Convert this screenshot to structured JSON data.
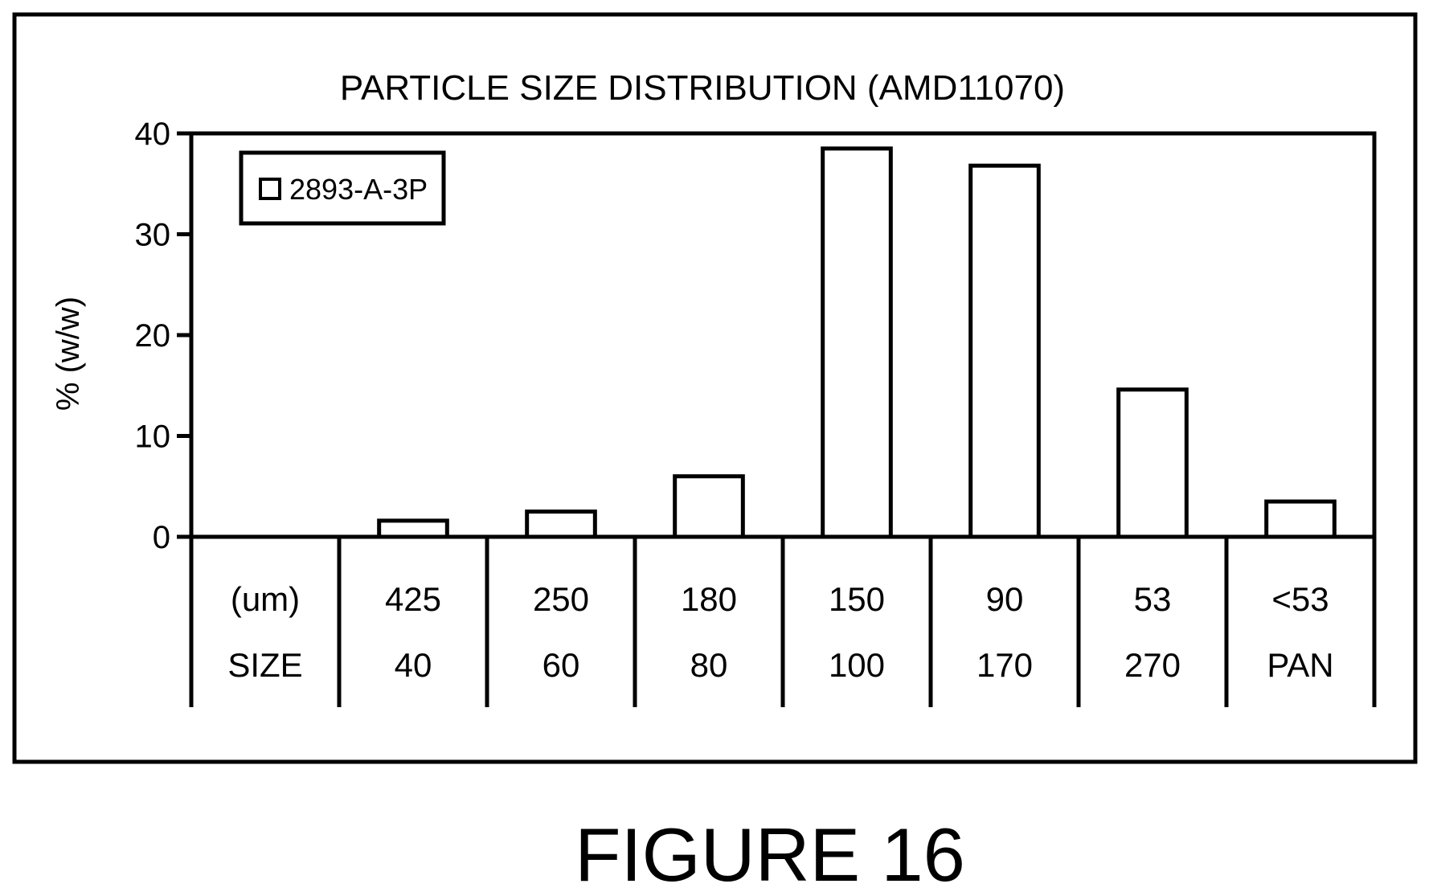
{
  "figure_label": "FIGURE 16",
  "chart_data": {
    "type": "bar",
    "title": "PARTICLE SIZE DISTRIBUTION (AMD11070)",
    "xlabel": "",
    "ylabel": "% (w/w)",
    "ylim": [
      0,
      40
    ],
    "yticks": [
      "0",
      "10",
      "20",
      "30",
      "40"
    ],
    "grid": false,
    "legend_position": "top-left",
    "row_labels": [
      "(um)",
      "SIZE"
    ],
    "categories": [
      {
        "size_um": "425",
        "mesh": "40"
      },
      {
        "size_um": "250",
        "mesh": "60"
      },
      {
        "size_um": "180",
        "mesh": "80"
      },
      {
        "size_um": "150",
        "mesh": "100"
      },
      {
        "size_um": "90",
        "mesh": "170"
      },
      {
        "size_um": "53",
        "mesh": "270"
      },
      {
        "size_um": "<53",
        "mesh": "PAN"
      }
    ],
    "series": [
      {
        "name": "2893-A-3P",
        "values": [
          1.6,
          2.5,
          6.0,
          38.5,
          36.8,
          14.6,
          3.5
        ]
      }
    ],
    "colors": {
      "bar_fill": "#ffffff",
      "stroke": "#000000"
    }
  }
}
